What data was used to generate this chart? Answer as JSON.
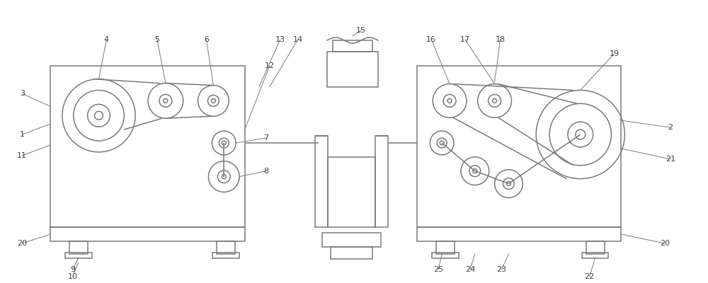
{
  "bg_color": "#ffffff",
  "line_color": "#7a7a7a",
  "text_color": "#404040",
  "fig_width": 10.0,
  "fig_height": 4.0,
  "lw": 1.1
}
